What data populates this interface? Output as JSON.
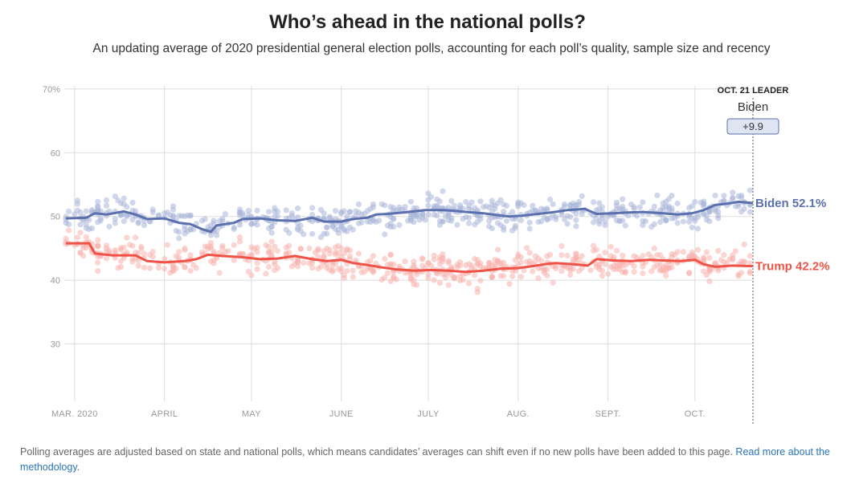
{
  "header": {
    "title": "Who’s ahead in the national polls?",
    "subtitle": "An updating average of 2020 presidential general election polls, accounting for each poll’s quality, sample size and recency"
  },
  "footer": {
    "note": "Polling averages are adjusted based on state and national polls, which means candidates’ averages can shift even if no new polls have been added to this page.",
    "link_text": "Read more about the methodology."
  },
  "leader": {
    "heading": "OCT. 21 LEADER",
    "name": "Biden",
    "margin": "+9.9"
  },
  "colors": {
    "biden": "#5b70ad",
    "trump": "#ef5347",
    "biden_dots": "#aab6d8",
    "trump_dots": "#f7b3ad",
    "grid": "#dddddd"
  },
  "chart_data": {
    "type": "line",
    "y_ticks": [
      "70%",
      "60",
      "50",
      "40",
      "30"
    ],
    "y_tick_values": [
      70,
      60,
      50,
      40,
      30
    ],
    "ylim": [
      21,
      72
    ],
    "x_range": [
      "2020-02-27",
      "2020-10-21"
    ],
    "x_ticks": [
      {
        "label": "MAR. 2020",
        "date": "2020-03-01"
      },
      {
        "label": "APRIL",
        "date": "2020-04-01"
      },
      {
        "label": "MAY",
        "date": "2020-05-01"
      },
      {
        "label": "JUNE",
        "date": "2020-06-01"
      },
      {
        "label": "JULY",
        "date": "2020-07-01"
      },
      {
        "label": "AUG.",
        "date": "2020-08-01"
      },
      {
        "label": "SEPT.",
        "date": "2020-09-01"
      },
      {
        "label": "OCT.",
        "date": "2020-10-01"
      }
    ],
    "series": [
      {
        "name": "Biden",
        "end_label": "Biden 52.1%",
        "points": [
          [
            "2020-02-27",
            49.7
          ],
          [
            "2020-03-05",
            49.8
          ],
          [
            "2020-03-08",
            50.5
          ],
          [
            "2020-03-12",
            50.3
          ],
          [
            "2020-03-18",
            50.8
          ],
          [
            "2020-03-22",
            50.3
          ],
          [
            "2020-03-26",
            49.6
          ],
          [
            "2020-04-01",
            49.7
          ],
          [
            "2020-04-06",
            49.0
          ],
          [
            "2020-04-10",
            48.8
          ],
          [
            "2020-04-14",
            48.0
          ],
          [
            "2020-04-17",
            47.6
          ],
          [
            "2020-04-19",
            48.6
          ],
          [
            "2020-04-25",
            49.0
          ],
          [
            "2020-04-28",
            49.6
          ],
          [
            "2020-05-04",
            49.7
          ],
          [
            "2020-05-10",
            49.4
          ],
          [
            "2020-05-16",
            49.3
          ],
          [
            "2020-05-22",
            49.8
          ],
          [
            "2020-05-26",
            49.2
          ],
          [
            "2020-06-01",
            49.2
          ],
          [
            "2020-06-05",
            49.6
          ],
          [
            "2020-06-10",
            49.8
          ],
          [
            "2020-06-13",
            50.3
          ],
          [
            "2020-06-17",
            50.4
          ],
          [
            "2020-06-22",
            50.6
          ],
          [
            "2020-06-26",
            50.8
          ],
          [
            "2020-06-30",
            51.0
          ],
          [
            "2020-07-06",
            51.0
          ],
          [
            "2020-07-10",
            50.9
          ],
          [
            "2020-07-14",
            50.7
          ],
          [
            "2020-07-20",
            50.5
          ],
          [
            "2020-07-25",
            50.2
          ],
          [
            "2020-07-29",
            50.0
          ],
          [
            "2020-08-02",
            50.1
          ],
          [
            "2020-08-06",
            50.3
          ],
          [
            "2020-08-12",
            50.6
          ],
          [
            "2020-08-18",
            51.0
          ],
          [
            "2020-08-24",
            51.2
          ],
          [
            "2020-08-28",
            50.4
          ],
          [
            "2020-09-03",
            50.5
          ],
          [
            "2020-09-07",
            50.6
          ],
          [
            "2020-09-13",
            50.7
          ],
          [
            "2020-09-20",
            50.5
          ],
          [
            "2020-09-25",
            50.3
          ],
          [
            "2020-09-30",
            50.5
          ],
          [
            "2020-10-04",
            51.0
          ],
          [
            "2020-10-08",
            51.8
          ],
          [
            "2020-10-12",
            52.0
          ],
          [
            "2020-10-16",
            52.3
          ],
          [
            "2020-10-21",
            52.1
          ]
        ]
      },
      {
        "name": "Trump",
        "end_label": "Trump 42.2%",
        "points": [
          [
            "2020-02-27",
            45.8
          ],
          [
            "2020-03-06",
            45.8
          ],
          [
            "2020-03-08",
            44.2
          ],
          [
            "2020-03-14",
            43.9
          ],
          [
            "2020-03-22",
            43.9
          ],
          [
            "2020-03-26",
            43.0
          ],
          [
            "2020-04-01",
            42.8
          ],
          [
            "2020-04-08",
            43.0
          ],
          [
            "2020-04-12",
            43.3
          ],
          [
            "2020-04-16",
            44.0
          ],
          [
            "2020-04-21",
            43.8
          ],
          [
            "2020-04-28",
            43.6
          ],
          [
            "2020-05-04",
            43.3
          ],
          [
            "2020-05-10",
            43.4
          ],
          [
            "2020-05-16",
            43.8
          ],
          [
            "2020-05-22",
            43.3
          ],
          [
            "2020-05-27",
            43.0
          ],
          [
            "2020-06-01",
            43.2
          ],
          [
            "2020-06-05",
            42.7
          ],
          [
            "2020-06-10",
            42.4
          ],
          [
            "2020-06-15",
            42.0
          ],
          [
            "2020-06-20",
            41.7
          ],
          [
            "2020-06-26",
            41.5
          ],
          [
            "2020-07-02",
            41.6
          ],
          [
            "2020-07-08",
            41.5
          ],
          [
            "2020-07-14",
            41.3
          ],
          [
            "2020-07-20",
            41.5
          ],
          [
            "2020-07-26",
            41.8
          ],
          [
            "2020-08-01",
            41.9
          ],
          [
            "2020-08-06",
            42.2
          ],
          [
            "2020-08-10",
            42.5
          ],
          [
            "2020-08-14",
            42.7
          ],
          [
            "2020-08-20",
            42.5
          ],
          [
            "2020-08-25",
            42.3
          ],
          [
            "2020-08-28",
            43.3
          ],
          [
            "2020-09-03",
            43.1
          ],
          [
            "2020-09-09",
            43.0
          ],
          [
            "2020-09-15",
            43.2
          ],
          [
            "2020-09-20",
            43.1
          ],
          [
            "2020-09-26",
            43.0
          ],
          [
            "2020-10-01",
            43.2
          ],
          [
            "2020-10-04",
            42.5
          ],
          [
            "2020-10-08",
            42.1
          ],
          [
            "2020-10-14",
            42.3
          ],
          [
            "2020-10-21",
            42.2
          ]
        ]
      }
    ]
  }
}
